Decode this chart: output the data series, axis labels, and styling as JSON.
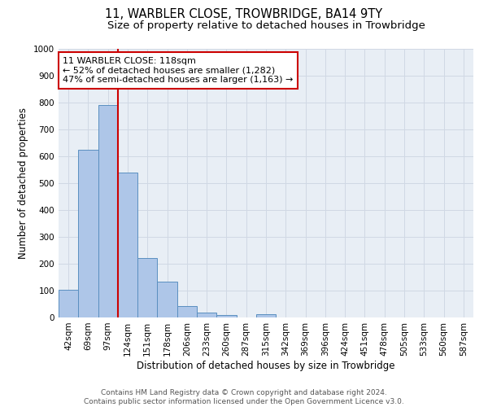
{
  "title1": "11, WARBLER CLOSE, TROWBRIDGE, BA14 9TY",
  "title2": "Size of property relative to detached houses in Trowbridge",
  "xlabel": "Distribution of detached houses by size in Trowbridge",
  "ylabel": "Number of detached properties",
  "bin_labels": [
    "42sqm",
    "69sqm",
    "97sqm",
    "124sqm",
    "151sqm",
    "178sqm",
    "206sqm",
    "233sqm",
    "260sqm",
    "287sqm",
    "315sqm",
    "342sqm",
    "369sqm",
    "396sqm",
    "424sqm",
    "451sqm",
    "478sqm",
    "505sqm",
    "533sqm",
    "560sqm",
    "587sqm"
  ],
  "bar_values": [
    103,
    623,
    790,
    538,
    221,
    132,
    42,
    17,
    10,
    0,
    11,
    0,
    0,
    0,
    0,
    0,
    0,
    0,
    0,
    0,
    0
  ],
  "bar_color": "#aec6e8",
  "bar_edge_color": "#5a8fc0",
  "property_line_x": 2.5,
  "annotation_line0": "11 WARBLER CLOSE: 118sqm",
  "annotation_line1": "← 52% of detached houses are smaller (1,282)",
  "annotation_line2": "47% of semi-detached houses are larger (1,163) →",
  "annotation_box_color": "#ffffff",
  "annotation_box_edge_color": "#cc0000",
  "vline_color": "#cc0000",
  "ylim": [
    0,
    1000
  ],
  "yticks": [
    0,
    100,
    200,
    300,
    400,
    500,
    600,
    700,
    800,
    900,
    1000
  ],
  "grid_color": "#d0d8e4",
  "bg_color": "#e8eef5",
  "footer": "Contains HM Land Registry data © Crown copyright and database right 2024.\nContains public sector information licensed under the Open Government Licence v3.0.",
  "title1_fontsize": 10.5,
  "title2_fontsize": 9.5,
  "xlabel_fontsize": 8.5,
  "ylabel_fontsize": 8.5,
  "tick_fontsize": 7.5,
  "annotation_fontsize": 8,
  "footer_fontsize": 6.5
}
